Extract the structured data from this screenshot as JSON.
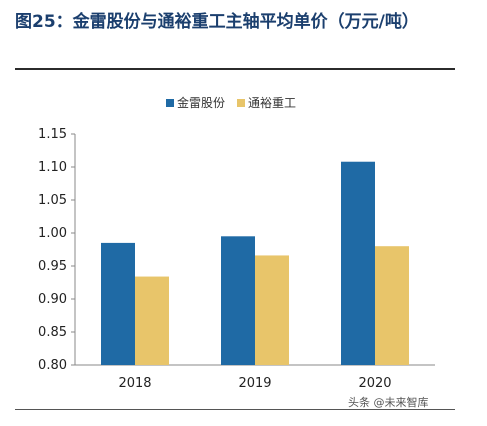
{
  "figure": {
    "title": "图25：金雷股份与通裕重工主轴平均单价（万元/吨）"
  },
  "watermark": "头条 @未来智库",
  "colors": {
    "series1": "#1f6aa5",
    "series2": "#e8c56a",
    "title": "#1b3f6e"
  },
  "chart_data": {
    "type": "bar",
    "categories": [
      "2018",
      "2019",
      "2020"
    ],
    "series": [
      {
        "name": "金雷股份",
        "values": [
          0.985,
          0.995,
          1.108
        ]
      },
      {
        "name": "通裕重工",
        "values": [
          0.934,
          0.966,
          0.98
        ]
      }
    ],
    "ylim": [
      0.8,
      1.15
    ],
    "yticks": [
      "0.80",
      "0.85",
      "0.90",
      "0.95",
      "1.00",
      "1.05",
      "1.10",
      "1.15"
    ],
    "legend": "top-center",
    "grid": false,
    "xlabel": "",
    "ylabel": ""
  }
}
